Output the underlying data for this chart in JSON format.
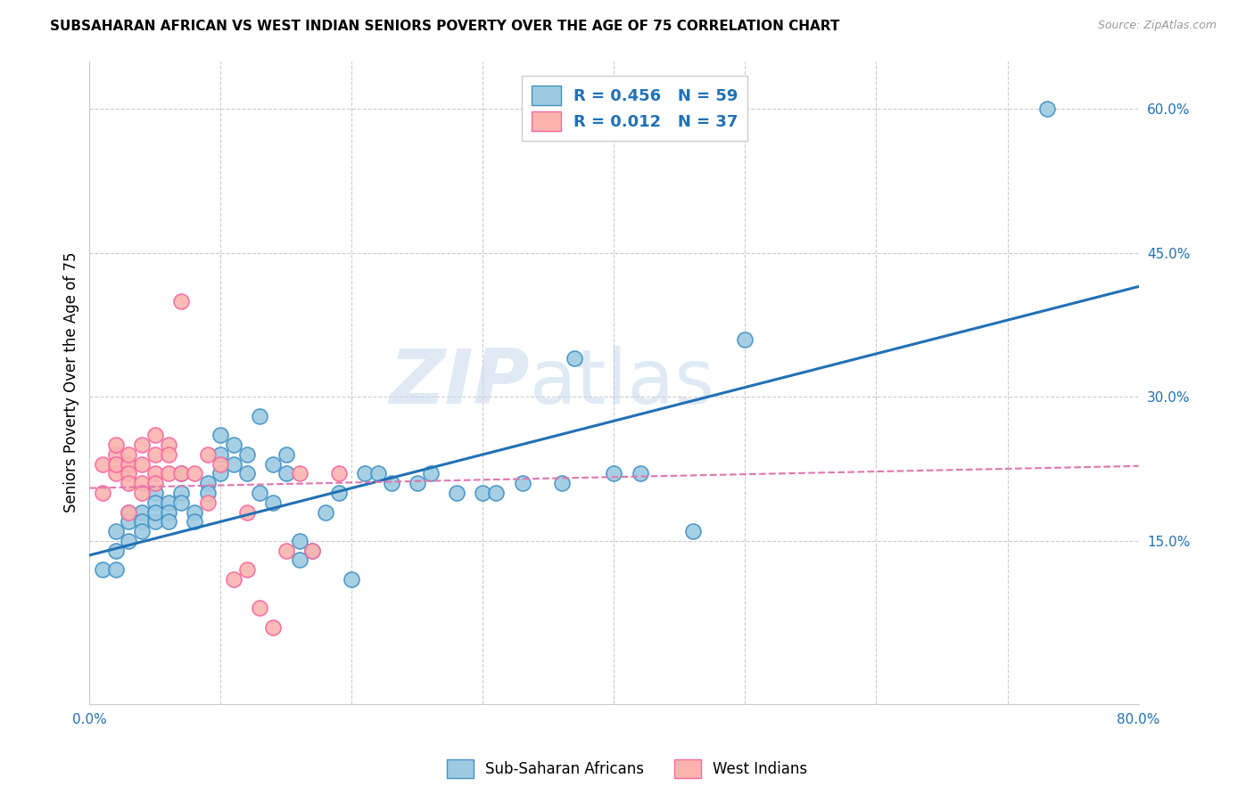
{
  "title": "SUBSAHARAN AFRICAN VS WEST INDIAN SENIORS POVERTY OVER THE AGE OF 75 CORRELATION CHART",
  "source": "Source: ZipAtlas.com",
  "ylabel": "Seniors Poverty Over the Age of 75",
  "xlim": [
    0,
    0.8
  ],
  "ylim": [
    -0.02,
    0.65
  ],
  "blue_R": "0.456",
  "blue_N": "59",
  "pink_R": "0.012",
  "pink_N": "37",
  "blue_color": "#9ecae1",
  "pink_color": "#fbb4ae",
  "blue_edge_color": "#4292c6",
  "pink_edge_color": "#f768a1",
  "blue_line_color": "#2171b5",
  "pink_line_color": "#de77ae",
  "watermark_color": "#c6d9ee",
  "blue_scatter_x": [
    0.01,
    0.02,
    0.02,
    0.02,
    0.03,
    0.03,
    0.03,
    0.04,
    0.04,
    0.04,
    0.05,
    0.05,
    0.05,
    0.05,
    0.06,
    0.06,
    0.06,
    0.07,
    0.07,
    0.07,
    0.08,
    0.08,
    0.09,
    0.09,
    0.1,
    0.1,
    0.1,
    0.11,
    0.11,
    0.12,
    0.12,
    0.13,
    0.13,
    0.14,
    0.14,
    0.15,
    0.15,
    0.16,
    0.16,
    0.17,
    0.18,
    0.19,
    0.2,
    0.21,
    0.22,
    0.23,
    0.25,
    0.26,
    0.28,
    0.3,
    0.31,
    0.33,
    0.36,
    0.37,
    0.4,
    0.42,
    0.46,
    0.5,
    0.73
  ],
  "blue_scatter_y": [
    0.12,
    0.16,
    0.14,
    0.12,
    0.18,
    0.17,
    0.15,
    0.18,
    0.17,
    0.16,
    0.2,
    0.19,
    0.17,
    0.18,
    0.19,
    0.18,
    0.17,
    0.2,
    0.19,
    0.22,
    0.18,
    0.17,
    0.21,
    0.2,
    0.22,
    0.24,
    0.26,
    0.25,
    0.23,
    0.24,
    0.22,
    0.2,
    0.28,
    0.23,
    0.19,
    0.22,
    0.24,
    0.13,
    0.15,
    0.14,
    0.18,
    0.2,
    0.11,
    0.22,
    0.22,
    0.21,
    0.21,
    0.22,
    0.2,
    0.2,
    0.2,
    0.21,
    0.21,
    0.34,
    0.22,
    0.22,
    0.16,
    0.36,
    0.6
  ],
  "pink_scatter_x": [
    0.01,
    0.01,
    0.02,
    0.02,
    0.02,
    0.02,
    0.03,
    0.03,
    0.03,
    0.03,
    0.03,
    0.04,
    0.04,
    0.04,
    0.04,
    0.05,
    0.05,
    0.05,
    0.05,
    0.06,
    0.06,
    0.06,
    0.07,
    0.07,
    0.08,
    0.09,
    0.09,
    0.1,
    0.11,
    0.12,
    0.12,
    0.13,
    0.14,
    0.15,
    0.16,
    0.17,
    0.19
  ],
  "pink_scatter_y": [
    0.2,
    0.23,
    0.22,
    0.24,
    0.23,
    0.25,
    0.23,
    0.24,
    0.22,
    0.21,
    0.18,
    0.23,
    0.21,
    0.2,
    0.25,
    0.22,
    0.26,
    0.24,
    0.21,
    0.25,
    0.24,
    0.22,
    0.4,
    0.22,
    0.22,
    0.24,
    0.19,
    0.23,
    0.11,
    0.18,
    0.12,
    0.08,
    0.06,
    0.14,
    0.22,
    0.14,
    0.22
  ],
  "blue_line_x0": 0.0,
  "blue_line_x1": 0.8,
  "blue_line_y0": 0.135,
  "blue_line_y1": 0.415,
  "pink_line_x0": 0.0,
  "pink_line_x1": 0.8,
  "pink_line_y0": 0.205,
  "pink_line_y1": 0.228
}
